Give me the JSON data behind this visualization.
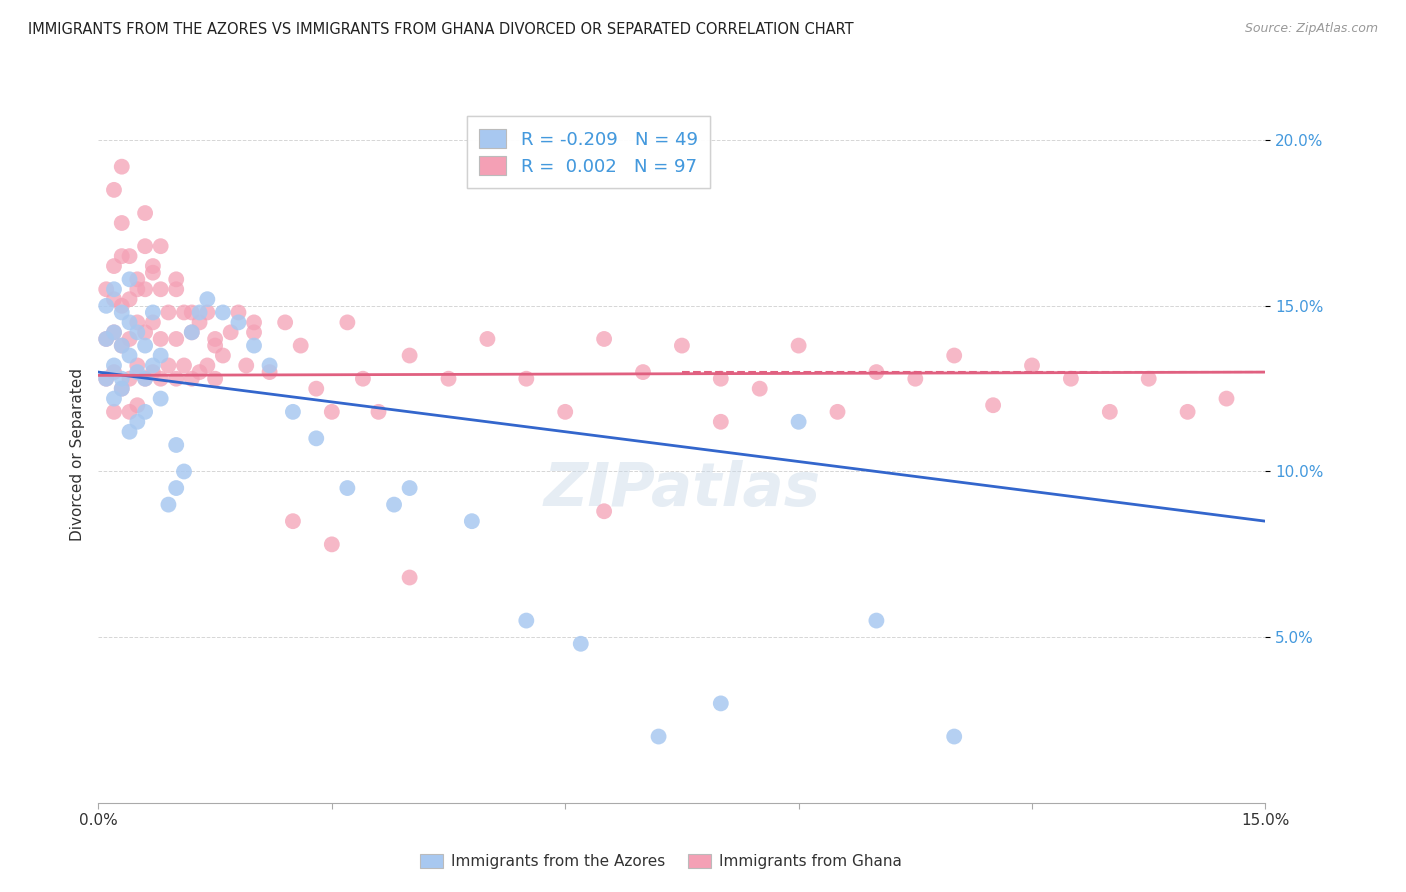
{
  "title": "IMMIGRANTS FROM THE AZORES VS IMMIGRANTS FROM GHANA DIVORCED OR SEPARATED CORRELATION CHART",
  "source": "Source: ZipAtlas.com",
  "ylabel": "Divorced or Separated",
  "xlim": [
    0.0,
    0.15
  ],
  "ylim": [
    0.0,
    0.21
  ],
  "azores_R": -0.209,
  "azores_N": 49,
  "ghana_R": 0.002,
  "ghana_N": 97,
  "azores_color": "#a8c8f0",
  "ghana_color": "#f4a0b5",
  "azores_line_color": "#3366cc",
  "ghana_line_color": "#e06080",
  "legend_label_azores": "Immigrants from the Azores",
  "legend_label_ghana": "Immigrants from Ghana",
  "background_color": "#ffffff",
  "grid_color": "#cccccc",
  "azores_line_start_y": 0.13,
  "azores_line_end_y": 0.085,
  "ghana_line_start_y": 0.129,
  "ghana_line_end_y": 0.13,
  "azores_x": [
    0.001,
    0.001,
    0.001,
    0.002,
    0.002,
    0.002,
    0.002,
    0.003,
    0.003,
    0.003,
    0.003,
    0.004,
    0.004,
    0.004,
    0.004,
    0.005,
    0.005,
    0.005,
    0.006,
    0.006,
    0.006,
    0.007,
    0.007,
    0.008,
    0.008,
    0.009,
    0.01,
    0.01,
    0.011,
    0.012,
    0.013,
    0.014,
    0.016,
    0.018,
    0.02,
    0.022,
    0.025,
    0.028,
    0.032,
    0.038,
    0.04,
    0.048,
    0.055,
    0.062,
    0.072,
    0.08,
    0.09,
    0.1,
    0.11
  ],
  "azores_y": [
    0.128,
    0.14,
    0.15,
    0.132,
    0.142,
    0.122,
    0.155,
    0.138,
    0.148,
    0.128,
    0.125,
    0.135,
    0.145,
    0.158,
    0.112,
    0.13,
    0.142,
    0.115,
    0.128,
    0.138,
    0.118,
    0.132,
    0.148,
    0.122,
    0.135,
    0.09,
    0.095,
    0.108,
    0.1,
    0.142,
    0.148,
    0.152,
    0.148,
    0.145,
    0.138,
    0.132,
    0.118,
    0.11,
    0.095,
    0.09,
    0.095,
    0.085,
    0.055,
    0.048,
    0.02,
    0.03,
    0.115,
    0.055,
    0.02
  ],
  "ghana_x": [
    0.001,
    0.001,
    0.001,
    0.002,
    0.002,
    0.002,
    0.002,
    0.002,
    0.003,
    0.003,
    0.003,
    0.003,
    0.004,
    0.004,
    0.004,
    0.004,
    0.005,
    0.005,
    0.005,
    0.005,
    0.006,
    0.006,
    0.006,
    0.007,
    0.007,
    0.007,
    0.008,
    0.008,
    0.008,
    0.009,
    0.009,
    0.01,
    0.01,
    0.01,
    0.011,
    0.011,
    0.012,
    0.012,
    0.013,
    0.013,
    0.014,
    0.014,
    0.015,
    0.015,
    0.016,
    0.017,
    0.018,
    0.019,
    0.02,
    0.022,
    0.024,
    0.026,
    0.028,
    0.03,
    0.032,
    0.034,
    0.036,
    0.04,
    0.045,
    0.05,
    0.055,
    0.06,
    0.065,
    0.07,
    0.075,
    0.08,
    0.085,
    0.09,
    0.095,
    0.1,
    0.105,
    0.11,
    0.115,
    0.12,
    0.125,
    0.13,
    0.135,
    0.14,
    0.145,
    0.002,
    0.003,
    0.004,
    0.005,
    0.006,
    0.007,
    0.003,
    0.006,
    0.008,
    0.01,
    0.012,
    0.015,
    0.02,
    0.025,
    0.03,
    0.04,
    0.065,
    0.08
  ],
  "ghana_y": [
    0.128,
    0.14,
    0.155,
    0.13,
    0.142,
    0.152,
    0.118,
    0.162,
    0.125,
    0.138,
    0.15,
    0.165,
    0.128,
    0.14,
    0.152,
    0.118,
    0.132,
    0.145,
    0.158,
    0.12,
    0.128,
    0.142,
    0.155,
    0.13,
    0.145,
    0.16,
    0.128,
    0.14,
    0.155,
    0.132,
    0.148,
    0.128,
    0.14,
    0.155,
    0.132,
    0.148,
    0.128,
    0.142,
    0.13,
    0.145,
    0.132,
    0.148,
    0.128,
    0.14,
    0.135,
    0.142,
    0.148,
    0.132,
    0.142,
    0.13,
    0.145,
    0.138,
    0.125,
    0.118,
    0.145,
    0.128,
    0.118,
    0.135,
    0.128,
    0.14,
    0.128,
    0.118,
    0.14,
    0.13,
    0.138,
    0.128,
    0.125,
    0.138,
    0.118,
    0.13,
    0.128,
    0.135,
    0.12,
    0.132,
    0.128,
    0.118,
    0.128,
    0.118,
    0.122,
    0.185,
    0.175,
    0.165,
    0.155,
    0.168,
    0.162,
    0.192,
    0.178,
    0.168,
    0.158,
    0.148,
    0.138,
    0.145,
    0.085,
    0.078,
    0.068,
    0.088,
    0.115
  ]
}
